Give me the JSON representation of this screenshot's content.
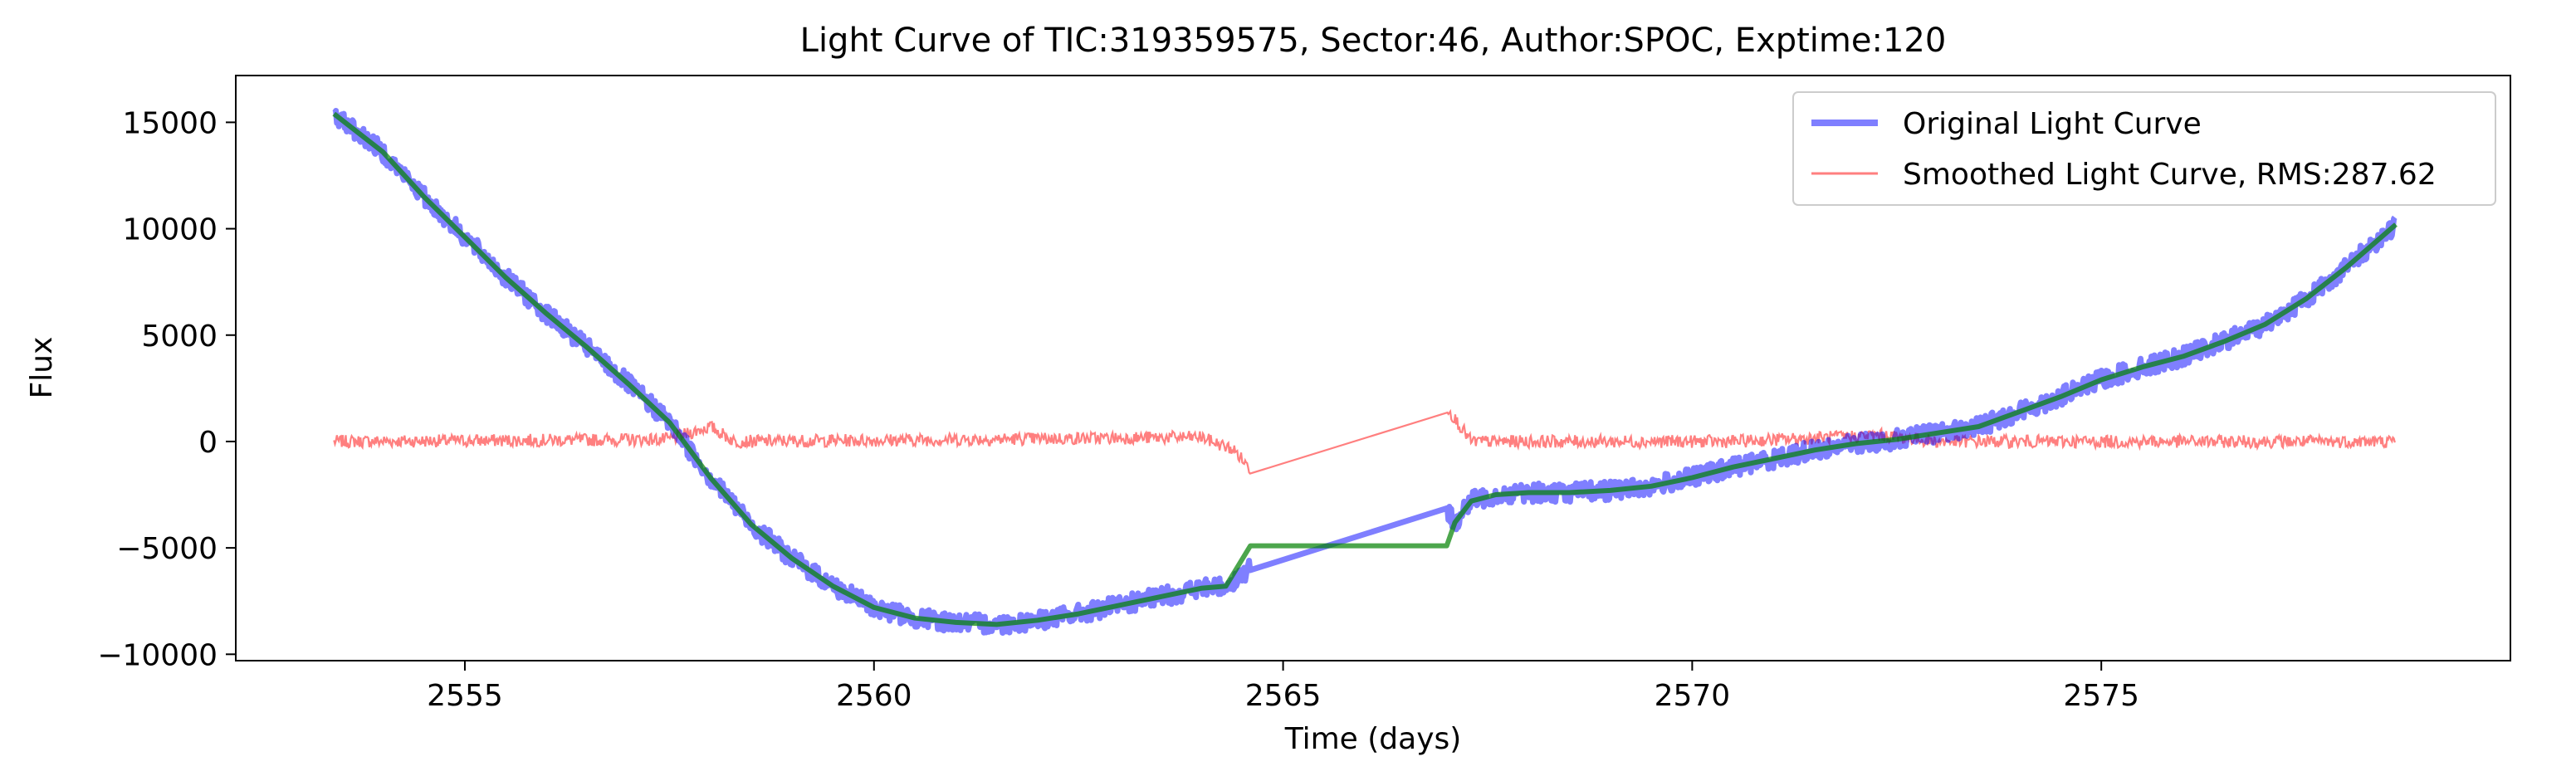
{
  "chart_data": {
    "type": "line",
    "title": "Light Curve of TIC:319359575, Sector:46, Author:SPOC, Exptime:120",
    "xlabel": "Time (days)",
    "ylabel": "Flux",
    "xlim": [
      2552.2,
      2580.0
    ],
    "ylim": [
      -10300,
      17200
    ],
    "xticks": [
      2555,
      2560,
      2565,
      2570,
      2575
    ],
    "yticks": [
      -10000,
      -5000,
      0,
      5000,
      10000,
      15000
    ],
    "grid": false,
    "legend_position": "top-right",
    "legend": [
      {
        "label": "Original Light Curve",
        "color": "#0000ff"
      },
      {
        "label": "Smoothed Light Curve, RMS:287.62",
        "color": "#ff0000"
      }
    ],
    "series": [
      {
        "role": "original",
        "color": "#0000ff",
        "noise": 450,
        "x": [
          2553.4,
          2554.0,
          2554.5,
          2555.0,
          2555.5,
          2556.0,
          2556.5,
          2557.0,
          2557.5,
          2558.0,
          2558.5,
          2559.0,
          2559.5,
          2560.0,
          2560.5,
          2561.0,
          2561.5,
          2562.0,
          2562.5,
          2563.0,
          2563.5,
          2564.0,
          2564.3,
          2564.6,
          2567.0,
          2567.1,
          2567.3,
          2567.6,
          2568.0,
          2568.5,
          2569.0,
          2569.5,
          2570.0,
          2570.5,
          2571.0,
          2571.5,
          2572.0,
          2572.5,
          2573.0,
          2573.5,
          2574.0,
          2574.5,
          2575.0,
          2575.5,
          2576.0,
          2576.5,
          2577.0,
          2577.5,
          2578.0,
          2578.6
        ],
        "y": [
          15400,
          13600,
          11500,
          9600,
          7700,
          6000,
          4400,
          2700,
          900,
          -1700,
          -3900,
          -5500,
          -6800,
          -7800,
          -8300,
          -8500,
          -8600,
          -8400,
          -8100,
          -7700,
          -7300,
          -6900,
          -6800,
          -6000,
          -3300,
          -3800,
          -2800,
          -2500,
          -2400,
          -2400,
          -2300,
          -2100,
          -1700,
          -1200,
          -800,
          -400,
          -100,
          100,
          400,
          700,
          1400,
          2100,
          2900,
          3500,
          4000,
          4700,
          5500,
          6700,
          8200,
          10200
        ]
      },
      {
        "role": "smoothed-fit",
        "color": "#008000",
        "x": [
          2553.4,
          2554.0,
          2554.5,
          2555.0,
          2555.5,
          2556.0,
          2556.5,
          2557.0,
          2557.5,
          2558.0,
          2558.5,
          2559.0,
          2559.5,
          2560.0,
          2560.5,
          2561.0,
          2561.5,
          2562.0,
          2562.5,
          2563.0,
          2563.5,
          2564.0,
          2564.3,
          2564.6,
          2567.0,
          2567.1,
          2567.3,
          2567.6,
          2568.0,
          2568.5,
          2569.0,
          2569.5,
          2570.0,
          2570.5,
          2571.0,
          2571.5,
          2572.0,
          2572.5,
          2573.0,
          2573.5,
          2574.0,
          2574.5,
          2575.0,
          2575.5,
          2576.0,
          2576.5,
          2577.0,
          2577.5,
          2578.0,
          2578.6
        ],
        "y": [
          15400,
          13600,
          11500,
          9600,
          7700,
          6000,
          4400,
          2700,
          900,
          -1700,
          -3900,
          -5500,
          -6800,
          -7800,
          -8300,
          -8500,
          -8600,
          -8400,
          -8100,
          -7700,
          -7300,
          -6900,
          -6800,
          -4900,
          -4900,
          -3800,
          -2800,
          -2500,
          -2400,
          -2400,
          -2300,
          -2100,
          -1700,
          -1200,
          -800,
          -400,
          -100,
          100,
          400,
          700,
          1400,
          2100,
          2900,
          3500,
          4000,
          4700,
          5500,
          6700,
          8200,
          10200
        ]
      },
      {
        "role": "residual",
        "color": "#ff0000",
        "noise": 300,
        "x": [
          2553.4,
          2557.5,
          2558.0,
          2558.3,
          2564.0,
          2564.4,
          2564.6,
          2567.0,
          2567.3,
          2570.5,
          2572.3,
          2573.0,
          2578.6
        ],
        "y": [
          0,
          100,
          700,
          0,
          200,
          -400,
          -1300,
          1600,
          0,
          0,
          300,
          0,
          0
        ]
      }
    ]
  }
}
